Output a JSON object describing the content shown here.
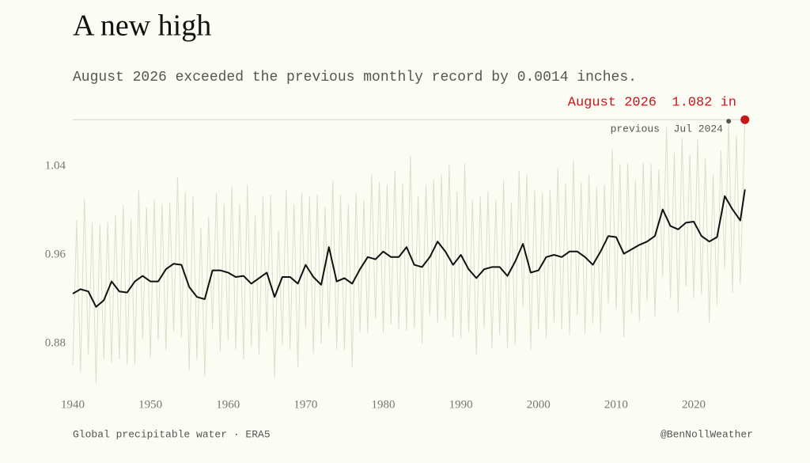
{
  "chart_data": {
    "type": "line",
    "title": "A new high",
    "subtitle": "August 2026 exceeded the previous monthly record by 0.0014 inches.",
    "source": "Global precipitable water · ERA5",
    "credit": "@BenNollWeather",
    "xlim": [
      1940,
      2028
    ],
    "ylim": [
      0.84,
      1.085
    ],
    "xticks": [
      1940,
      1950,
      1960,
      1970,
      1980,
      1990,
      2000,
      2010,
      2020
    ],
    "yticks": [
      0.88,
      0.96,
      1.04
    ],
    "grid": false,
    "record": {
      "date": "August 2026",
      "x": 2026.6,
      "value": 1.082,
      "value_label": "1.082 in",
      "color": "#c8161d"
    },
    "previous": {
      "label": "previous",
      "date": "Jul 2024",
      "x": 2024.5,
      "value": 1.0806,
      "color": "#555555"
    },
    "series": [
      {
        "color": "#dcdfc9",
        "width": 1,
        "x": [
          1940,
          1940.5,
          1941,
          1941.5,
          1942,
          1942.5,
          1943,
          1943.5,
          1944,
          1944.5,
          1945,
          1945.5,
          1946,
          1946.5,
          1947,
          1947.5,
          1948,
          1948.5,
          1949,
          1949.5,
          1950,
          1950.5,
          1951,
          1951.5,
          1952,
          1952.5,
          1953,
          1953.5,
          1954,
          1954.5,
          1955,
          1955.5,
          1956,
          1956.5,
          1957,
          1957.5,
          1958,
          1958.5,
          1959,
          1959.5,
          1960,
          1960.5,
          1961,
          1961.5,
          1962,
          1962.5,
          1963,
          1963.5,
          1964,
          1964.5,
          1965,
          1965.5,
          1966,
          1966.5,
          1967,
          1967.5,
          1968,
          1968.5,
          1969,
          1969.5,
          1970,
          1970.5,
          1971,
          1971.5,
          1972,
          1972.5,
          1973,
          1973.5,
          1974,
          1974.5,
          1975,
          1975.5,
          1976,
          1976.5,
          1977,
          1977.5,
          1978,
          1978.5,
          1979,
          1979.5,
          1980,
          1980.5,
          1981,
          1981.5,
          1982,
          1982.5,
          1983,
          1983.5,
          1984,
          1984.5,
          1985,
          1985.5,
          1986,
          1986.5,
          1987,
          1987.5,
          1988,
          1988.5,
          1989,
          1989.5,
          1990,
          1990.5,
          1991,
          1991.5,
          1992,
          1992.5,
          1993,
          1993.5,
          1994,
          1994.5,
          1995,
          1995.5,
          1996,
          1996.5,
          1997,
          1997.5,
          1998,
          1998.5,
          1999,
          1999.5,
          2000,
          2000.5,
          2001,
          2001.5,
          2002,
          2002.5,
          2003,
          2003.5,
          2004,
          2004.5,
          2005,
          2005.5,
          2006,
          2006.5,
          2007,
          2007.5,
          2008,
          2008.5,
          2009,
          2009.5,
          2010,
          2010.5,
          2011,
          2011.5,
          2012,
          2012.5,
          2013,
          2013.5,
          2014,
          2014.5,
          2015,
          2015.5,
          2016,
          2016.5,
          2017,
          2017.5,
          2018,
          2018.5,
          2019,
          2019.5,
          2020,
          2020.5,
          2021,
          2021.5,
          2022,
          2022.5,
          2023,
          2023.5,
          2024,
          2024.5,
          2025,
          2025.5,
          2026,
          2026.6
        ],
        "values": [
          0.86,
          0.991,
          0.854,
          1.011,
          0.87,
          0.989,
          0.844,
          0.987,
          0.866,
          0.989,
          0.863,
          0.996,
          0.866,
          1.005,
          0.861,
          0.992,
          0.861,
          1.018,
          0.884,
          1.003,
          0.867,
          1.01,
          0.883,
          1.006,
          0.874,
          1.007,
          0.891,
          1.03,
          0.886,
          1.017,
          0.856,
          1.013,
          0.865,
          0.984,
          0.851,
          0.994,
          0.893,
          1.016,
          0.873,
          1.006,
          0.883,
          1.022,
          0.875,
          1.006,
          0.866,
          1.023,
          0.877,
          0.996,
          0.87,
          1.013,
          0.891,
          1.014,
          0.849,
          0.982,
          0.879,
          1.018,
          0.875,
          1.006,
          0.859,
          1.016,
          0.894,
          1.013,
          0.871,
          1.014,
          0.88,
          1.003,
          0.894,
          1.027,
          0.875,
          1.014,
          0.874,
          1.005,
          0.859,
          1.016,
          0.89,
          1.009,
          0.889,
          1.032,
          0.903,
          1.026,
          0.89,
          1.023,
          0.897,
          1.036,
          0.893,
          1.024,
          0.892,
          1.049,
          0.894,
          1.013,
          0.88,
          1.023,
          0.905,
          1.028,
          0.899,
          1.032,
          0.902,
          1.041,
          0.886,
          1.017,
          0.885,
          1.042,
          0.89,
          1.009,
          0.87,
          1.013,
          0.894,
          1.017,
          0.876,
          1.009,
          0.888,
          1.027,
          0.876,
          1.007,
          0.879,
          1.036,
          0.913,
          1.032,
          0.875,
          1.018,
          0.893,
          1.016,
          0.885,
          1.018,
          0.899,
          1.038,
          0.893,
          1.024,
          0.888,
          1.045,
          0.906,
          1.025,
          0.889,
          1.032,
          0.898,
          1.021,
          0.89,
          1.023,
          0.916,
          1.055,
          0.911,
          1.042,
          0.886,
          1.043,
          0.908,
          1.027,
          0.9,
          1.043,
          0.919,
          1.042,
          0.904,
          1.037,
          0.94,
          1.075,
          0.921,
          1.052,
          0.908,
          1.065,
          0.932,
          1.051,
          0.921,
          1.064,
          0.924,
          1.047,
          0.899,
          1.032,
          0.915,
          1.054,
          0.948,
          1.0806,
          0.926,
          1.068,
          0.934,
          1.082
        ]
      },
      {
        "color": "#111111",
        "width": 2,
        "x": [
          1940,
          1941,
          1942,
          1943,
          1944,
          1945,
          1946,
          1947,
          1948,
          1949,
          1950,
          1951,
          1952,
          1953,
          1954,
          1955,
          1956,
          1957,
          1958,
          1959,
          1960,
          1961,
          1962,
          1963,
          1964,
          1965,
          1966,
          1967,
          1968,
          1969,
          1970,
          1971,
          1972,
          1973,
          1974,
          1975,
          1976,
          1977,
          1978,
          1979,
          1980,
          1981,
          1982,
          1983,
          1984,
          1985,
          1986,
          1987,
          1988,
          1989,
          1990,
          1991,
          1992,
          1993,
          1994,
          1995,
          1996,
          1997,
          1998,
          1999,
          2000,
          2001,
          2002,
          2003,
          2004,
          2005,
          2006,
          2007,
          2008,
          2009,
          2010,
          2011,
          2012,
          2013,
          2014,
          2015,
          2016,
          2017,
          2018,
          2019,
          2020,
          2021,
          2022,
          2023,
          2024,
          2025,
          2026,
          2026.6
        ],
        "values": [
          0.925,
          0.929,
          0.927,
          0.913,
          0.919,
          0.936,
          0.927,
          0.926,
          0.936,
          0.941,
          0.936,
          0.936,
          0.947,
          0.952,
          0.951,
          0.931,
          0.922,
          0.92,
          0.946,
          0.946,
          0.944,
          0.94,
          0.941,
          0.934,
          0.939,
          0.944,
          0.922,
          0.94,
          0.94,
          0.934,
          0.951,
          0.94,
          0.933,
          0.967,
          0.936,
          0.939,
          0.934,
          0.947,
          0.958,
          0.956,
          0.963,
          0.958,
          0.958,
          0.967,
          0.951,
          0.949,
          0.958,
          0.972,
          0.963,
          0.951,
          0.96,
          0.947,
          0.939,
          0.947,
          0.949,
          0.949,
          0.941,
          0.954,
          0.97,
          0.944,
          0.946,
          0.958,
          0.96,
          0.958,
          0.963,
          0.963,
          0.958,
          0.951,
          0.963,
          0.977,
          0.976,
          0.961,
          0.965,
          0.969,
          0.972,
          0.977,
          1.001,
          0.986,
          0.983,
          0.989,
          0.99,
          0.977,
          0.972,
          0.976,
          1.013,
          1.001,
          0.991,
          1.019
        ]
      }
    ]
  }
}
